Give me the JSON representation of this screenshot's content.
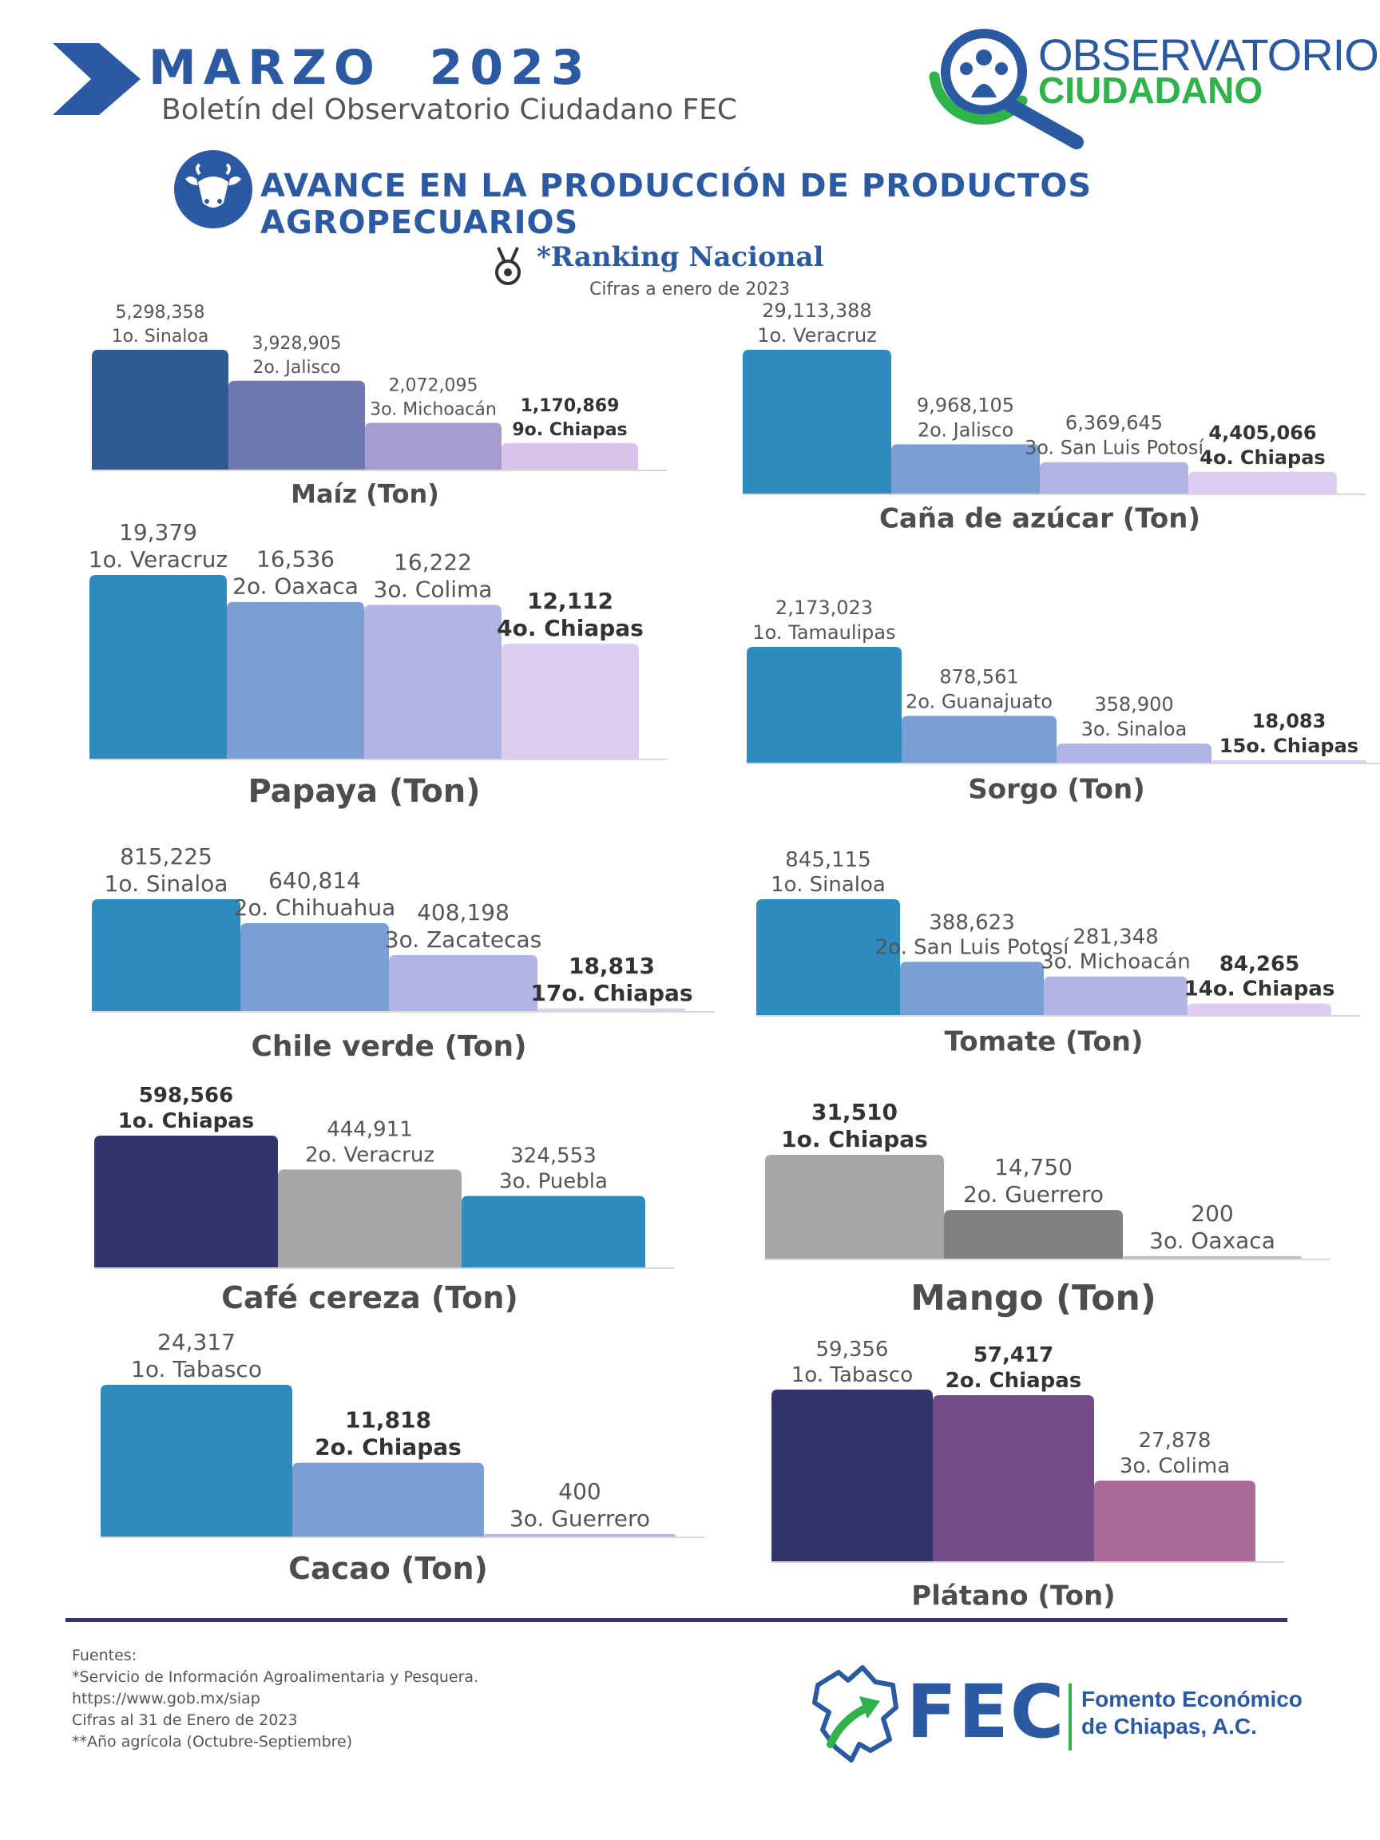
{
  "header": {
    "month": "MARZO  2023",
    "subtitle": "Boletín del Observatorio Ciudadano FEC",
    "logo_line1": "OBSERVATORIO",
    "logo_line2": "CIUDADANO",
    "section_title": "AVANCE EN LA PRODUCCIÓN DE PRODUCTOS AGROPECUARIOS",
    "ranking_title": "*Ranking Nacional",
    "ranking_subtitle": "Cifras a enero de 2023",
    "icons": [
      "chevron-icon",
      "cow-icon",
      "medal-icon",
      "magnifier-family-icon",
      "chiapas-map-icon"
    ]
  },
  "colors": {
    "brand_blue": "#2b5aa3",
    "brand_green": "#2fb24a",
    "navy": "#33366b"
  },
  "chart_data": [
    {
      "type": "bar",
      "title": "Maíz (Ton)",
      "categories": [
        "1o. Sinaloa",
        "2o. Jalisco",
        "3o. Michoacán",
        "9o. Chiapas"
      ],
      "value_labels": [
        "5,298,358",
        "3,928,905",
        "2,072,095",
        "1,170,869"
      ],
      "values": [
        5298358,
        3928905,
        2072095,
        1170869
      ],
      "colors": [
        "#2f5b94",
        "#6f78b0",
        "#a69ccf",
        "#d9c3eb"
      ],
      "bold": [
        false,
        false,
        false,
        true
      ]
    },
    {
      "type": "bar",
      "title": "Caña de azúcar  (Ton)",
      "categories": [
        "1o. Veracruz",
        "2o. Jalisco",
        "3o. San Luis Potosí",
        "4o. Chiapas"
      ],
      "value_labels": [
        "29,113,388",
        "9,968,105",
        "6,369,645",
        "4,405,066"
      ],
      "values": [
        29113388,
        9968105,
        6369645,
        4405066
      ],
      "colors": [
        "#2e8bbd",
        "#7a9fd4",
        "#b0b5e6",
        "#dcccf2"
      ],
      "bold": [
        false,
        false,
        false,
        true
      ]
    },
    {
      "type": "bar",
      "title": "Papaya (Ton)",
      "categories": [
        "1o. Veracruz",
        "2o. Oaxaca",
        "3o. Colima",
        "4o. Chiapas"
      ],
      "value_labels": [
        "19,379",
        "16,536",
        "16,222",
        "12,112"
      ],
      "values": [
        19379,
        16536,
        16222,
        12112
      ],
      "colors": [
        "#2e8bbd",
        "#7a9fd4",
        "#b0b5e6",
        "#dcccf2"
      ],
      "bold": [
        false,
        false,
        false,
        true
      ]
    },
    {
      "type": "bar",
      "title": "Sorgo  (Ton)",
      "categories": [
        "1o. Tamaulipas",
        "2o. Guanajuato",
        "3o. Sinaloa",
        "15o. Chiapas"
      ],
      "value_labels": [
        "2,173,023",
        "878,561",
        "358,900",
        "18,083"
      ],
      "values": [
        2173023,
        878561,
        358900,
        18083
      ],
      "colors": [
        "#2e8bbd",
        "#7a9fd4",
        "#b0b5e6",
        "#dcccf2"
      ],
      "bold": [
        false,
        false,
        false,
        true
      ]
    },
    {
      "type": "bar",
      "title": "Chile verde (Ton)",
      "categories": [
        "1o. Sinaloa",
        "2o. Chihuahua",
        "3o. Zacatecas",
        "17o. Chiapas"
      ],
      "value_labels": [
        "815,225",
        "640,814",
        "408,198",
        "18,813"
      ],
      "values": [
        815225,
        640814,
        408198,
        18813
      ],
      "colors": [
        "#2e8bbd",
        "#7a9fd4",
        "#b0b5e6",
        "#dcccf2"
      ],
      "bold": [
        false,
        false,
        false,
        true
      ]
    },
    {
      "type": "bar",
      "title": "Tomate  (Ton)",
      "categories": [
        "1o. Sinaloa",
        "2o. San Luis Potosí",
        "3o. Michoacán",
        "14o. Chiapas"
      ],
      "value_labels": [
        "845,115",
        "388,623",
        "281,348",
        "84,265"
      ],
      "values": [
        845115,
        388623,
        281348,
        84265
      ],
      "colors": [
        "#2e8bbd",
        "#7a9fd4",
        "#b0b5e6",
        "#dcccf2"
      ],
      "bold": [
        false,
        false,
        false,
        true
      ]
    },
    {
      "type": "bar",
      "title": "Café cereza (Ton)",
      "categories": [
        "1o. Chiapas",
        "2o. Veracruz",
        "3o. Puebla"
      ],
      "value_labels": [
        "598,566",
        "444,911",
        "324,553"
      ],
      "values": [
        598566,
        444911,
        324553
      ],
      "colors": [
        "#32356b",
        "#a6a6a6",
        "#2e8bbd"
      ],
      "bold": [
        true,
        false,
        false
      ]
    },
    {
      "type": "bar",
      "title": "Mango (Ton)",
      "categories": [
        "1o. Chiapas",
        "2o. Guerrero",
        "3o. Oaxaca"
      ],
      "value_labels": [
        "31,510",
        "14,750",
        "200"
      ],
      "values": [
        31510,
        14750,
        200
      ],
      "colors": [
        "#a6a6a6",
        "#808080",
        "#bdbdbd"
      ],
      "bold": [
        true,
        false,
        false
      ]
    },
    {
      "type": "bar",
      "title": "Cacao (Ton)",
      "categories": [
        "1o. Tabasco",
        "2o. Chiapas",
        "3o. Guerrero"
      ],
      "value_labels": [
        "24,317",
        "11,818",
        "400"
      ],
      "values": [
        24317,
        11818,
        400
      ],
      "colors": [
        "#2e8bbd",
        "#7a9fd4",
        "#b0b5e6"
      ],
      "bold": [
        false,
        true,
        false
      ]
    },
    {
      "type": "bar",
      "title": "Plátano (Ton)",
      "categories": [
        "1o.  Tabasco",
        "2o. Chiapas",
        "3o. Colima"
      ],
      "value_labels": [
        "59,356",
        "57,417",
        "27,878"
      ],
      "values": [
        59356,
        57417,
        27878
      ],
      "colors": [
        "#32356b",
        "#734b87",
        "#a86b98"
      ],
      "bold": [
        false,
        true,
        false
      ]
    }
  ],
  "footer": {
    "sources": [
      "Fuentes:",
      "*Servicio de Información Agroalimentaria y Pesquera.",
      "https://www.gob.mx/siap",
      "Cifras al 31 de Enero de 2023",
      "**Año agrícola (Octubre-Septiembre)"
    ],
    "fec_acronym": "FEC",
    "fec_name_line1": "Fomento Económico",
    "fec_name_line2": "de Chiapas, A.C."
  }
}
